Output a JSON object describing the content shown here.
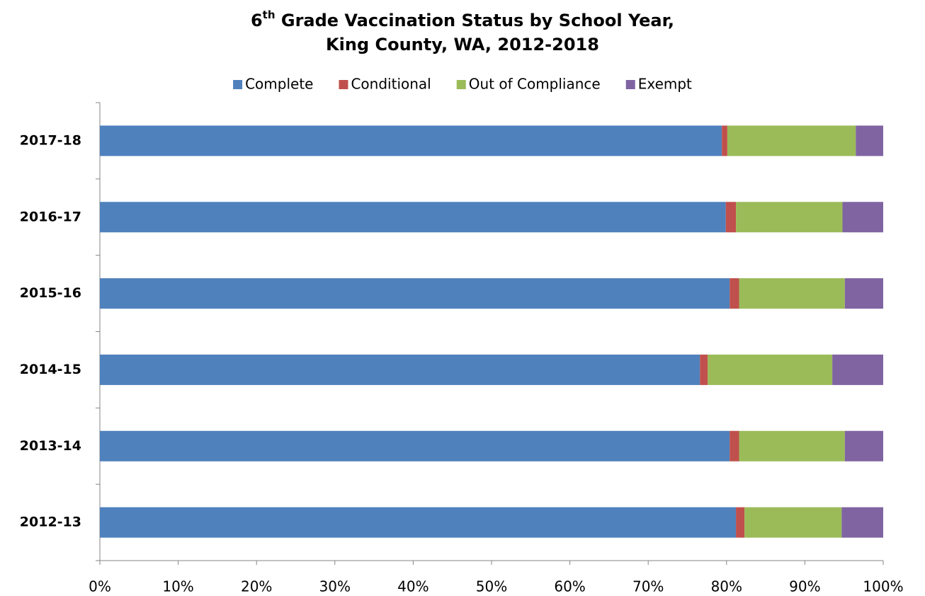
{
  "chart_data": {
    "type": "stacked_barh",
    "title": [
      "6",
      "th",
      " Grade Vaccination Status by School Year,",
      "King County, WA, 2012-2018"
    ],
    "categories": [
      "2012-13",
      "2013-14",
      "2014-15",
      "2015-16",
      "2016-17",
      "2017-18"
    ],
    "series": [
      {
        "name": "Complete",
        "color": "#4f81bd",
        "values": [
          81.2,
          80.4,
          76.6,
          80.4,
          79.9,
          79.4
        ]
      },
      {
        "name": "Conditional",
        "color": "#c0504d",
        "values": [
          1.1,
          1.2,
          1.0,
          1.2,
          1.3,
          0.7
        ]
      },
      {
        "name": "Out of Compliance",
        "color": "#9bbb59",
        "values": [
          12.4,
          13.5,
          15.9,
          13.5,
          13.6,
          16.4
        ]
      },
      {
        "name": "Exempt",
        "color": "#8064a2",
        "values": [
          5.3,
          4.9,
          6.5,
          4.9,
          5.2,
          3.5
        ]
      }
    ],
    "xlim": [
      0,
      100
    ],
    "xticks": [
      {
        "value": 0,
        "label": "0%"
      },
      {
        "value": 10,
        "label": "10%"
      },
      {
        "value": 20,
        "label": "20%"
      },
      {
        "value": 30,
        "label": "30%"
      },
      {
        "value": 40,
        "label": "40%"
      },
      {
        "value": 50,
        "label": "50%"
      },
      {
        "value": 60,
        "label": "60%"
      },
      {
        "value": 70,
        "label": "70%"
      },
      {
        "value": 80,
        "label": "80%"
      },
      {
        "value": 90,
        "label": "90%"
      },
      {
        "value": 100,
        "label": "100%"
      }
    ],
    "legend": "top"
  }
}
